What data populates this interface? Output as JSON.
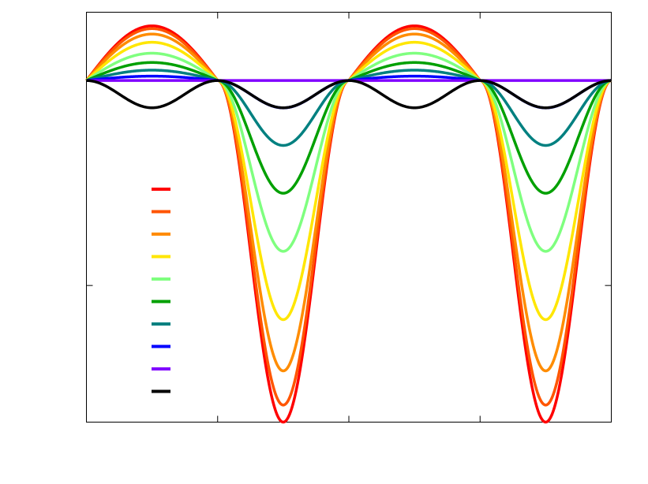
{
  "chart_data": {
    "type": "line",
    "title": "",
    "xlabel": "",
    "ylabel": "",
    "xlim": [
      0,
      4
    ],
    "ylim": [
      -2.5,
      0.5
    ],
    "x_ticks": [
      0,
      1,
      2,
      3,
      4
    ],
    "y_ticks": [
      -1.5
    ],
    "grid": false,
    "legend_position": "lower-left",
    "legend": {
      "entries": [
        {
          "label": "",
          "color": "#ff0000"
        },
        {
          "label": "",
          "color": "#ff5500"
        },
        {
          "label": "",
          "color": "#ff8c00"
        },
        {
          "label": "",
          "color": "#ffe600"
        },
        {
          "label": "",
          "color": "#7fff7f"
        },
        {
          "label": "",
          "color": "#00a000"
        },
        {
          "label": "",
          "color": "#008080"
        },
        {
          "label": "",
          "color": "#0000ff"
        },
        {
          "label": "",
          "color": "#8000ff"
        },
        {
          "label": "",
          "color": "#000000"
        }
      ]
    },
    "series": [
      {
        "color": "#ff0000",
        "amplitude": 1.0,
        "shape": "periodic"
      },
      {
        "color": "#ff5500",
        "amplitude": 0.95,
        "shape": "periodic"
      },
      {
        "color": "#ff8c00",
        "amplitude": 0.85,
        "shape": "periodic"
      },
      {
        "color": "#ffe600",
        "amplitude": 0.7,
        "shape": "periodic"
      },
      {
        "color": "#7fff7f",
        "amplitude": 0.5,
        "shape": "periodic"
      },
      {
        "color": "#00a000",
        "amplitude": 0.33,
        "shape": "periodic"
      },
      {
        "color": "#008080",
        "amplitude": 0.19,
        "shape": "periodic"
      },
      {
        "color": "#0000ff",
        "amplitude": 0.08,
        "shape": "periodic"
      },
      {
        "color": "#8000ff",
        "amplitude": 0.0,
        "shape": "periodic"
      },
      {
        "color": "#000000",
        "amplitude": 0.19,
        "shape": "dip-only"
      }
    ]
  }
}
